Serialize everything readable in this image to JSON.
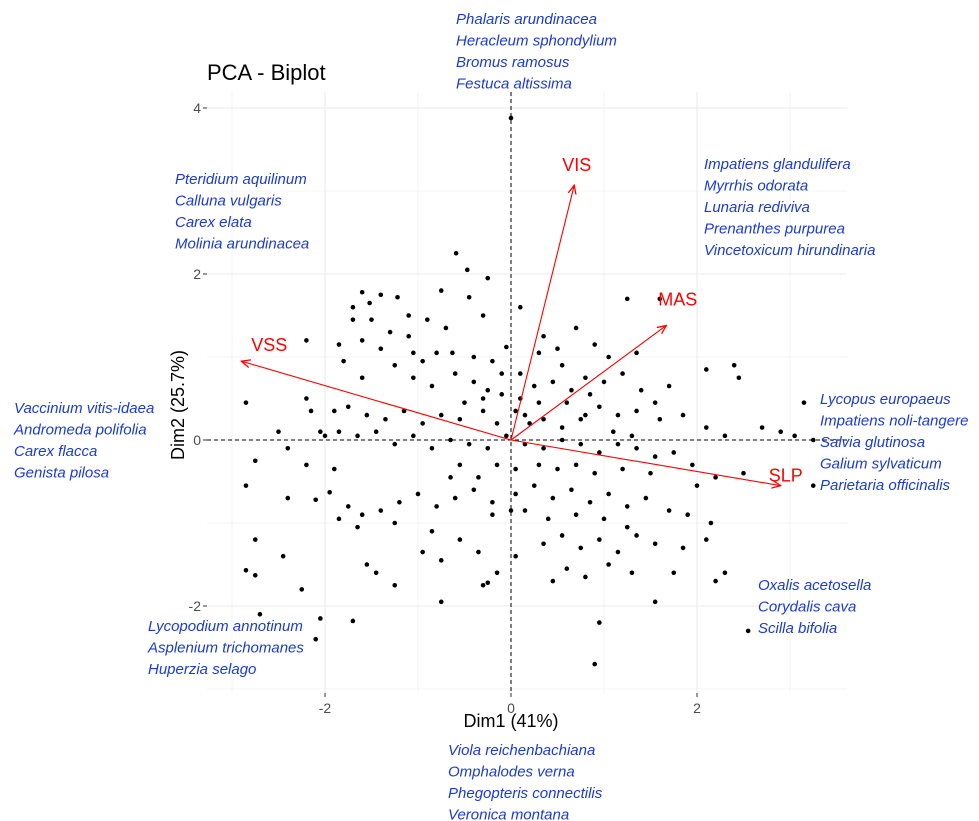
{
  "chart_data": {
    "type": "scatter",
    "title": "PCA - Biplot",
    "xlabel": "Dim1 (41%)",
    "ylabel": "Dim2 (25.7%)",
    "xlim": [
      -3.25,
      3.5
    ],
    "ylim": [
      -3.0,
      4.4
    ],
    "x_ticks": [
      -2,
      0,
      2
    ],
    "y_ticks": [
      -2,
      0,
      2,
      4
    ],
    "x_tick_labels": [
      "-2",
      "0",
      "2"
    ],
    "y_tick_labels": [
      "-2",
      "0",
      "2",
      "4"
    ],
    "grid": true,
    "reference_lines": "dashed at x=0 and y=0",
    "colors": {
      "points": "#000000",
      "arrows": "#ff0000",
      "species": "#1a3bd6",
      "grid": "#ebebeb"
    },
    "variables": [
      {
        "name": "VSS",
        "x": -2.9,
        "y": 0.95
      },
      {
        "name": "VIS",
        "x": 0.68,
        "y": 3.07
      },
      {
        "name": "MAS",
        "x": 1.67,
        "y": 1.38
      },
      {
        "name": "SLP",
        "x": 2.9,
        "y": -0.55
      }
    ],
    "points": [
      [
        0.0,
        3.88
      ],
      [
        -0.59,
        2.25
      ],
      [
        -0.47,
        2.05
      ],
      [
        -0.25,
        1.95
      ],
      [
        -0.75,
        1.8
      ],
      [
        1.25,
        1.7
      ],
      [
        -1.6,
        1.78
      ],
      [
        -1.4,
        1.75
      ],
      [
        -1.22,
        1.72
      ],
      [
        -1.52,
        1.65
      ],
      [
        -1.7,
        1.6
      ],
      [
        -0.45,
        1.72
      ],
      [
        1.6,
        1.7
      ],
      [
        -2.2,
        1.2
      ],
      [
        -1.7,
        1.45
      ],
      [
        -1.5,
        1.45
      ],
      [
        -1.3,
        1.3
      ],
      [
        -1.85,
        1.15
      ],
      [
        -1.6,
        1.2
      ],
      [
        -1.4,
        1.1
      ],
      [
        -1.1,
        1.25
      ],
      [
        -1.05,
        1.05
      ],
      [
        -0.95,
        0.95
      ],
      [
        -0.8,
        1.05
      ],
      [
        -0.63,
        1.05
      ],
      [
        -0.4,
        1.0
      ],
      [
        -0.2,
        0.95
      ],
      [
        -0.05,
        1.12
      ],
      [
        0.35,
        1.25
      ],
      [
        0.5,
        1.1
      ],
      [
        0.7,
        1.35
      ],
      [
        0.9,
        1.15
      ],
      [
        0.3,
        1.05
      ],
      [
        -1.8,
        0.95
      ],
      [
        -1.6,
        0.75
      ],
      [
        -1.25,
        0.9
      ],
      [
        -1.05,
        0.75
      ],
      [
        -0.85,
        0.65
      ],
      [
        -0.6,
        0.8
      ],
      [
        -0.4,
        0.7
      ],
      [
        -0.25,
        0.6
      ],
      [
        -0.1,
        0.55
      ],
      [
        0.1,
        0.8
      ],
      [
        0.25,
        0.65
      ],
      [
        0.45,
        0.7
      ],
      [
        0.65,
        0.6
      ],
      [
        0.8,
        0.75
      ],
      [
        1.0,
        0.7
      ],
      [
        1.2,
        0.8
      ],
      [
        1.4,
        0.6
      ],
      [
        1.55,
        0.45
      ],
      [
        1.7,
        0.65
      ],
      [
        2.1,
        0.85
      ],
      [
        2.4,
        0.9
      ],
      [
        2.45,
        0.75
      ],
      [
        3.15,
        0.45
      ],
      [
        2.7,
        0.15
      ],
      [
        2.9,
        0.1
      ],
      [
        3.25,
        0.0
      ],
      [
        3.05,
        0.05
      ],
      [
        -2.85,
        0.45
      ],
      [
        -2.2,
        0.5
      ],
      [
        -2.15,
        0.35
      ],
      [
        -1.9,
        0.35
      ],
      [
        -1.75,
        0.4
      ],
      [
        -1.55,
        0.3
      ],
      [
        -1.35,
        0.25
      ],
      [
        -1.15,
        0.35
      ],
      [
        -0.95,
        0.2
      ],
      [
        -0.75,
        0.3
      ],
      [
        -0.55,
        0.25
      ],
      [
        -0.3,
        0.35
      ],
      [
        -0.15,
        0.2
      ],
      [
        0.05,
        0.35
      ],
      [
        0.2,
        0.2
      ],
      [
        0.35,
        0.25
      ],
      [
        0.55,
        0.15
      ],
      [
        0.75,
        0.25
      ],
      [
        0.95,
        0.4
      ],
      [
        1.15,
        0.3
      ],
      [
        1.35,
        0.35
      ],
      [
        1.6,
        0.25
      ],
      [
        1.85,
        0.3
      ],
      [
        2.1,
        0.15
      ],
      [
        2.3,
        0.05
      ],
      [
        -2.05,
        0.1
      ],
      [
        -2.0,
        0.05
      ],
      [
        -1.85,
        0.1
      ],
      [
        -1.65,
        0.05
      ],
      [
        -1.45,
        0.1
      ],
      [
        -1.25,
        -0.05
      ],
      [
        -1.05,
        0.05
      ],
      [
        -0.85,
        -0.1
      ],
      [
        -0.65,
        0.0
      ],
      [
        -0.45,
        -0.05
      ],
      [
        -0.25,
        -0.1
      ],
      [
        -0.05,
        0.05
      ],
      [
        0.15,
        -0.05
      ],
      [
        0.35,
        -0.1
      ],
      [
        0.55,
        0.0
      ],
      [
        0.75,
        -0.05
      ],
      [
        0.95,
        -0.15
      ],
      [
        1.15,
        -0.05
      ],
      [
        1.35,
        -0.1
      ],
      [
        1.55,
        -0.2
      ],
      [
        1.75,
        -0.15
      ],
      [
        1.95,
        -0.3
      ],
      [
        2.2,
        -0.45
      ],
      [
        2.5,
        -0.4
      ],
      [
        3.25,
        -0.55
      ],
      [
        -2.75,
        -0.25
      ],
      [
        -2.85,
        -0.55
      ],
      [
        -2.4,
        -0.7
      ],
      [
        -2.1,
        -0.72
      ],
      [
        -1.95,
        -0.63
      ],
      [
        -1.75,
        -0.8
      ],
      [
        -1.6,
        -0.9
      ],
      [
        -1.4,
        -0.85
      ],
      [
        -1.2,
        -0.75
      ],
      [
        -1.0,
        -0.65
      ],
      [
        -0.8,
        -0.8
      ],
      [
        -0.6,
        -0.7
      ],
      [
        -0.4,
        -0.6
      ],
      [
        -0.2,
        -0.75
      ],
      [
        0.05,
        -0.65
      ],
      [
        0.25,
        -0.55
      ],
      [
        0.45,
        -0.7
      ],
      [
        0.65,
        -0.6
      ],
      [
        0.85,
        -0.75
      ],
      [
        1.05,
        -0.65
      ],
      [
        1.25,
        -0.8
      ],
      [
        1.45,
        -0.7
      ],
      [
        1.7,
        -0.85
      ],
      [
        1.9,
        -0.9
      ],
      [
        2.15,
        -1.0
      ],
      [
        -1.85,
        -0.95
      ],
      [
        -1.65,
        -1.05
      ],
      [
        -1.25,
        -1.0
      ],
      [
        -0.85,
        -1.1
      ],
      [
        -0.55,
        -1.2
      ],
      [
        -0.35,
        -1.35
      ],
      [
        0.05,
        -1.4
      ],
      [
        0.35,
        -1.25
      ],
      [
        0.55,
        -1.15
      ],
      [
        0.75,
        -1.3
      ],
      [
        0.95,
        -1.2
      ],
      [
        1.15,
        -1.35
      ],
      [
        1.35,
        -1.15
      ],
      [
        1.55,
        -1.25
      ],
      [
        1.85,
        -1.3
      ],
      [
        2.1,
        -1.2
      ],
      [
        -2.75,
        -1.2
      ],
      [
        -2.45,
        -1.4
      ],
      [
        -2.85,
        -1.57
      ],
      [
        -2.75,
        -1.63
      ],
      [
        -1.55,
        -1.5
      ],
      [
        -1.45,
        -1.6
      ],
      [
        -1.25,
        -1.75
      ],
      [
        -0.95,
        -1.35
      ],
      [
        -0.75,
        -1.45
      ],
      [
        -0.3,
        -1.75
      ],
      [
        -0.25,
        -1.72
      ],
      [
        -0.15,
        -1.6
      ],
      [
        0.45,
        -1.7
      ],
      [
        0.6,
        -1.55
      ],
      [
        0.8,
        -1.65
      ],
      [
        1.05,
        -1.5
      ],
      [
        1.3,
        -1.6
      ],
      [
        1.75,
        -1.6
      ],
      [
        2.3,
        -1.6
      ],
      [
        -2.25,
        -1.8
      ],
      [
        -0.75,
        -1.95
      ],
      [
        0.95,
        -2.2
      ],
      [
        1.55,
        -1.95
      ],
      [
        2.2,
        -1.7
      ],
      [
        -2.7,
        -2.1
      ],
      [
        -2.05,
        -2.15
      ],
      [
        -1.7,
        -2.18
      ],
      [
        -2.1,
        -2.4
      ],
      [
        0.9,
        -2.7
      ],
      [
        2.55,
        -2.3
      ],
      [
        -0.5,
        0.45
      ],
      [
        -0.3,
        0.5
      ],
      [
        0.1,
        0.5
      ],
      [
        0.3,
        0.45
      ],
      [
        0.15,
        0.3
      ],
      [
        0.6,
        0.45
      ],
      [
        0.85,
        0.55
      ],
      [
        -0.15,
        -0.3
      ],
      [
        0.05,
        -0.35
      ],
      [
        0.3,
        -0.3
      ],
      [
        0.5,
        -0.35
      ],
      [
        0.7,
        -0.3
      ],
      [
        0.9,
        -0.4
      ],
      [
        1.2,
        -0.35
      ],
      [
        -0.55,
        -0.3
      ],
      [
        -0.35,
        -0.45
      ],
      [
        0.15,
        -0.85
      ],
      [
        0.4,
        -0.95
      ],
      [
        0.7,
        -0.9
      ],
      [
        1.0,
        -0.95
      ],
      [
        1.25,
        -1.05
      ],
      [
        -0.65,
        -0.45
      ],
      [
        -0.2,
        -0.9
      ],
      [
        0.0,
        -0.85
      ],
      [
        -0.1,
        0.8
      ],
      [
        0.55,
        0.9
      ],
      [
        1.05,
        1.0
      ],
      [
        1.35,
        1.05
      ],
      [
        -0.7,
        1.35
      ],
      [
        -0.9,
        1.45
      ],
      [
        -1.1,
        1.5
      ],
      [
        0.1,
        1.6
      ],
      [
        -0.3,
        1.5
      ],
      [
        0.8,
        0.3
      ],
      [
        1.1,
        0.1
      ],
      [
        1.3,
        0.05
      ],
      [
        1.5,
        -0.4
      ],
      [
        2.0,
        -0.55
      ],
      [
        -2.4,
        -0.1
      ],
      [
        -2.2,
        -0.3
      ],
      [
        -2.5,
        0.1
      ],
      [
        -1.9,
        -0.35
      ]
    ]
  },
  "species_groups": [
    {
      "id": "top",
      "items": [
        "Phalaris arundinacea",
        "Heracleum sphondylium",
        "Bromus ramosus",
        "Festuca altissima"
      ]
    },
    {
      "id": "upper-left",
      "items": [
        "Pteridium aquilinum",
        "Calluna vulgaris",
        "Carex elata",
        "Molinia arundinacea"
      ]
    },
    {
      "id": "upper-right",
      "items": [
        "Impatiens glandulifera",
        "Myrrhis odorata",
        "Lunaria rediviva",
        "Prenanthes purpurea",
        "Vincetoxicum hirundinaria"
      ]
    },
    {
      "id": "left",
      "items": [
        "Vaccinium vitis-idaea",
        "Andromeda polifolia",
        "Carex flacca",
        "Genista pilosa"
      ]
    },
    {
      "id": "right",
      "items": [
        "Lycopus europaeus",
        "Impatiens noli-tangere",
        "Salvia glutinosa",
        "Galium sylvaticum",
        "Parietaria officinalis"
      ]
    },
    {
      "id": "lower-right",
      "items": [
        "Oxalis acetosella",
        "Corydalis cava",
        "Scilla bifolia"
      ]
    },
    {
      "id": "lower-left",
      "items": [
        "Lycopodium annotinum",
        "Asplenium trichomanes",
        "Huperzia selago"
      ]
    },
    {
      "id": "bottom",
      "items": [
        "Viola reichenbachiana",
        "Omphalodes verna",
        "Phegopteris connectilis",
        "Veronica montana"
      ]
    }
  ]
}
